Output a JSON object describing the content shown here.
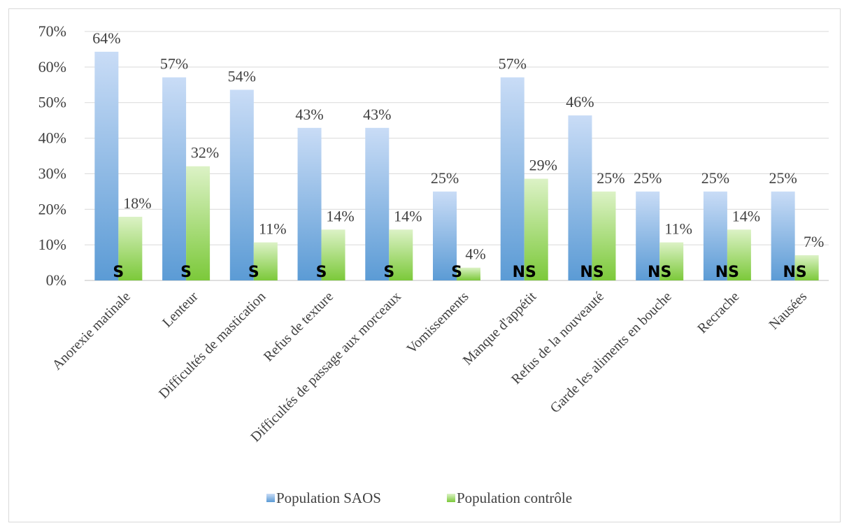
{
  "chart_data": {
    "type": "bar",
    "title": "",
    "xlabel": "",
    "ylabel": "",
    "ylim": [
      0,
      70
    ],
    "yticks": [
      "0%",
      "10%",
      "20%",
      "30%",
      "40%",
      "50%",
      "60%",
      "70%"
    ],
    "ytick_values": [
      0,
      10,
      20,
      30,
      40,
      50,
      60,
      70
    ],
    "grid": true,
    "legend_position": "bottom",
    "categories": [
      "Anorexie matinale",
      "Lenteur",
      "Difficultés de mastication",
      "Refus de texture",
      "Difficultés de passage aux morceaux",
      "Vomissements",
      "Manque d'appétit",
      "Refus de la nouveauté",
      "Garde les aliments en bouche",
      "Recrache",
      "Nausées"
    ],
    "series": [
      {
        "name": "Population SAOS",
        "color": "#5b9bd5",
        "values": [
          64.3,
          57.1,
          53.6,
          42.9,
          42.9,
          25.0,
          57.1,
          46.4,
          25.0,
          25.0,
          25.0
        ],
        "labels": [
          "64%",
          "57%",
          "54%",
          "43%",
          "43%",
          "25%",
          "57%",
          "46%",
          "25%",
          "25%",
          "25%"
        ]
      },
      {
        "name": "Population contrôle",
        "color": "#92d050",
        "values": [
          17.9,
          32.1,
          10.7,
          14.3,
          14.3,
          3.6,
          28.6,
          25.0,
          10.7,
          14.3,
          7.1
        ],
        "labels": [
          "18%",
          "32%",
          "11%",
          "14%",
          "14%",
          "4%",
          "29%",
          "25%",
          "11%",
          "14%",
          "7%"
        ]
      }
    ],
    "significance": [
      "S",
      "S",
      "S",
      "S",
      "S",
      "S",
      "NS",
      "NS",
      "NS",
      "NS",
      "NS"
    ]
  }
}
